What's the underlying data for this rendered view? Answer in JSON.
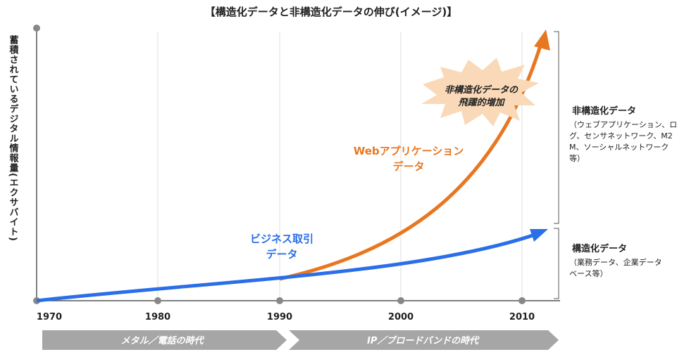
{
  "title": "【構造化データと非構造化データの伸び(イメージ)】",
  "y_axis_label": "蓄積されているデジタル情報量(エクサバイト)",
  "x_axis": {
    "ticks": [
      "1970",
      "1980",
      "1990",
      "2000",
      "2010"
    ]
  },
  "annotations": {
    "business": [
      "ビジネス取引",
      "データ"
    ],
    "web": [
      "Webアプリケーション",
      "データ"
    ],
    "burst": [
      "非構造化データの",
      "飛躍的増加"
    ]
  },
  "legend": [
    {
      "title": "非構造化データ",
      "lines": [
        "（ウェブアプリケーション、ロ",
        "グ、センサネットワーク、M2",
        "M、ソーシャルネットワーク",
        "等）"
      ]
    },
    {
      "title": "構造化データ",
      "lines": [
        "（業務データ、企業データ",
        "ベース等）"
      ]
    }
  ],
  "eras": [
    "メタル／電話の時代",
    "IP／ブロードバンドの時代"
  ]
}
